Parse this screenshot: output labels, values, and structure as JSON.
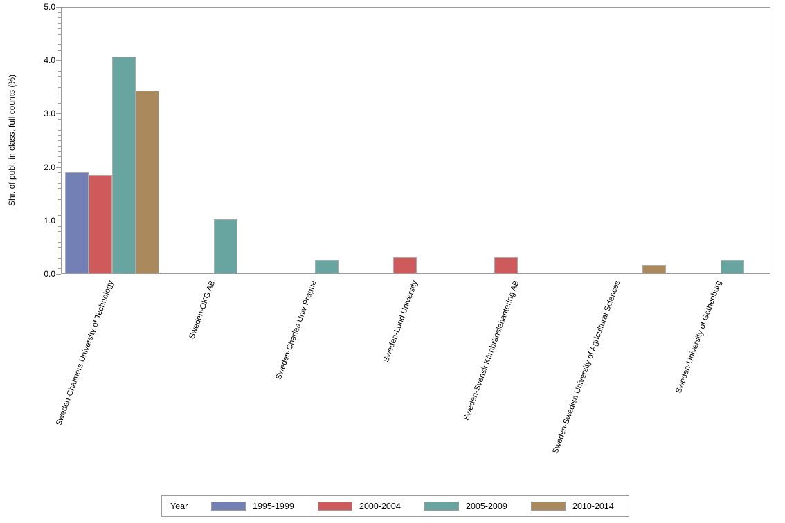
{
  "chart_data": {
    "type": "bar",
    "title": "",
    "xlabel": "",
    "ylabel": "Shr. of publ. in class, full counts (%)",
    "ylim": [
      0,
      5
    ],
    "ytick_interval": 1.0,
    "ytick_minor_interval": 0.1,
    "ytick_labels": [
      "0.0",
      "1.0",
      "2.0",
      "3.0",
      "4.0",
      "5.0"
    ],
    "grid": false,
    "plot_frame": true,
    "categories": [
      "Sweden-Chalmers University of Technology",
      "Sweden-OKG AB",
      "Sweden-Charles Univ Prague",
      "Sweden-Lund University",
      "Sweden-Svensk Kärnbränslehantering AB",
      "Sweden-Swedish University of Agricultural Sciences",
      "Sweden-University of Gothenburg"
    ],
    "series": [
      {
        "name": "1995-1999",
        "color": "#7280b5",
        "values": [
          1.89,
          null,
          null,
          null,
          null,
          null,
          null
        ]
      },
      {
        "name": "2000-2004",
        "color": "#cf5a5c",
        "values": [
          1.84,
          null,
          null,
          0.3,
          0.3,
          null,
          null
        ]
      },
      {
        "name": "2005-2009",
        "color": "#68a5a0",
        "values": [
          4.06,
          1.01,
          0.25,
          null,
          null,
          null,
          0.25
        ]
      },
      {
        "name": "2010-2014",
        "color": "#aa8a5c",
        "values": [
          3.42,
          null,
          null,
          null,
          null,
          0.15,
          null
        ]
      }
    ],
    "legend": {
      "title": "Year",
      "position": "bottom"
    }
  },
  "colors": {
    "axis": "#9b9b9b",
    "bar_border": "#ababab",
    "text": "#000000",
    "background": "#ffffff"
  }
}
